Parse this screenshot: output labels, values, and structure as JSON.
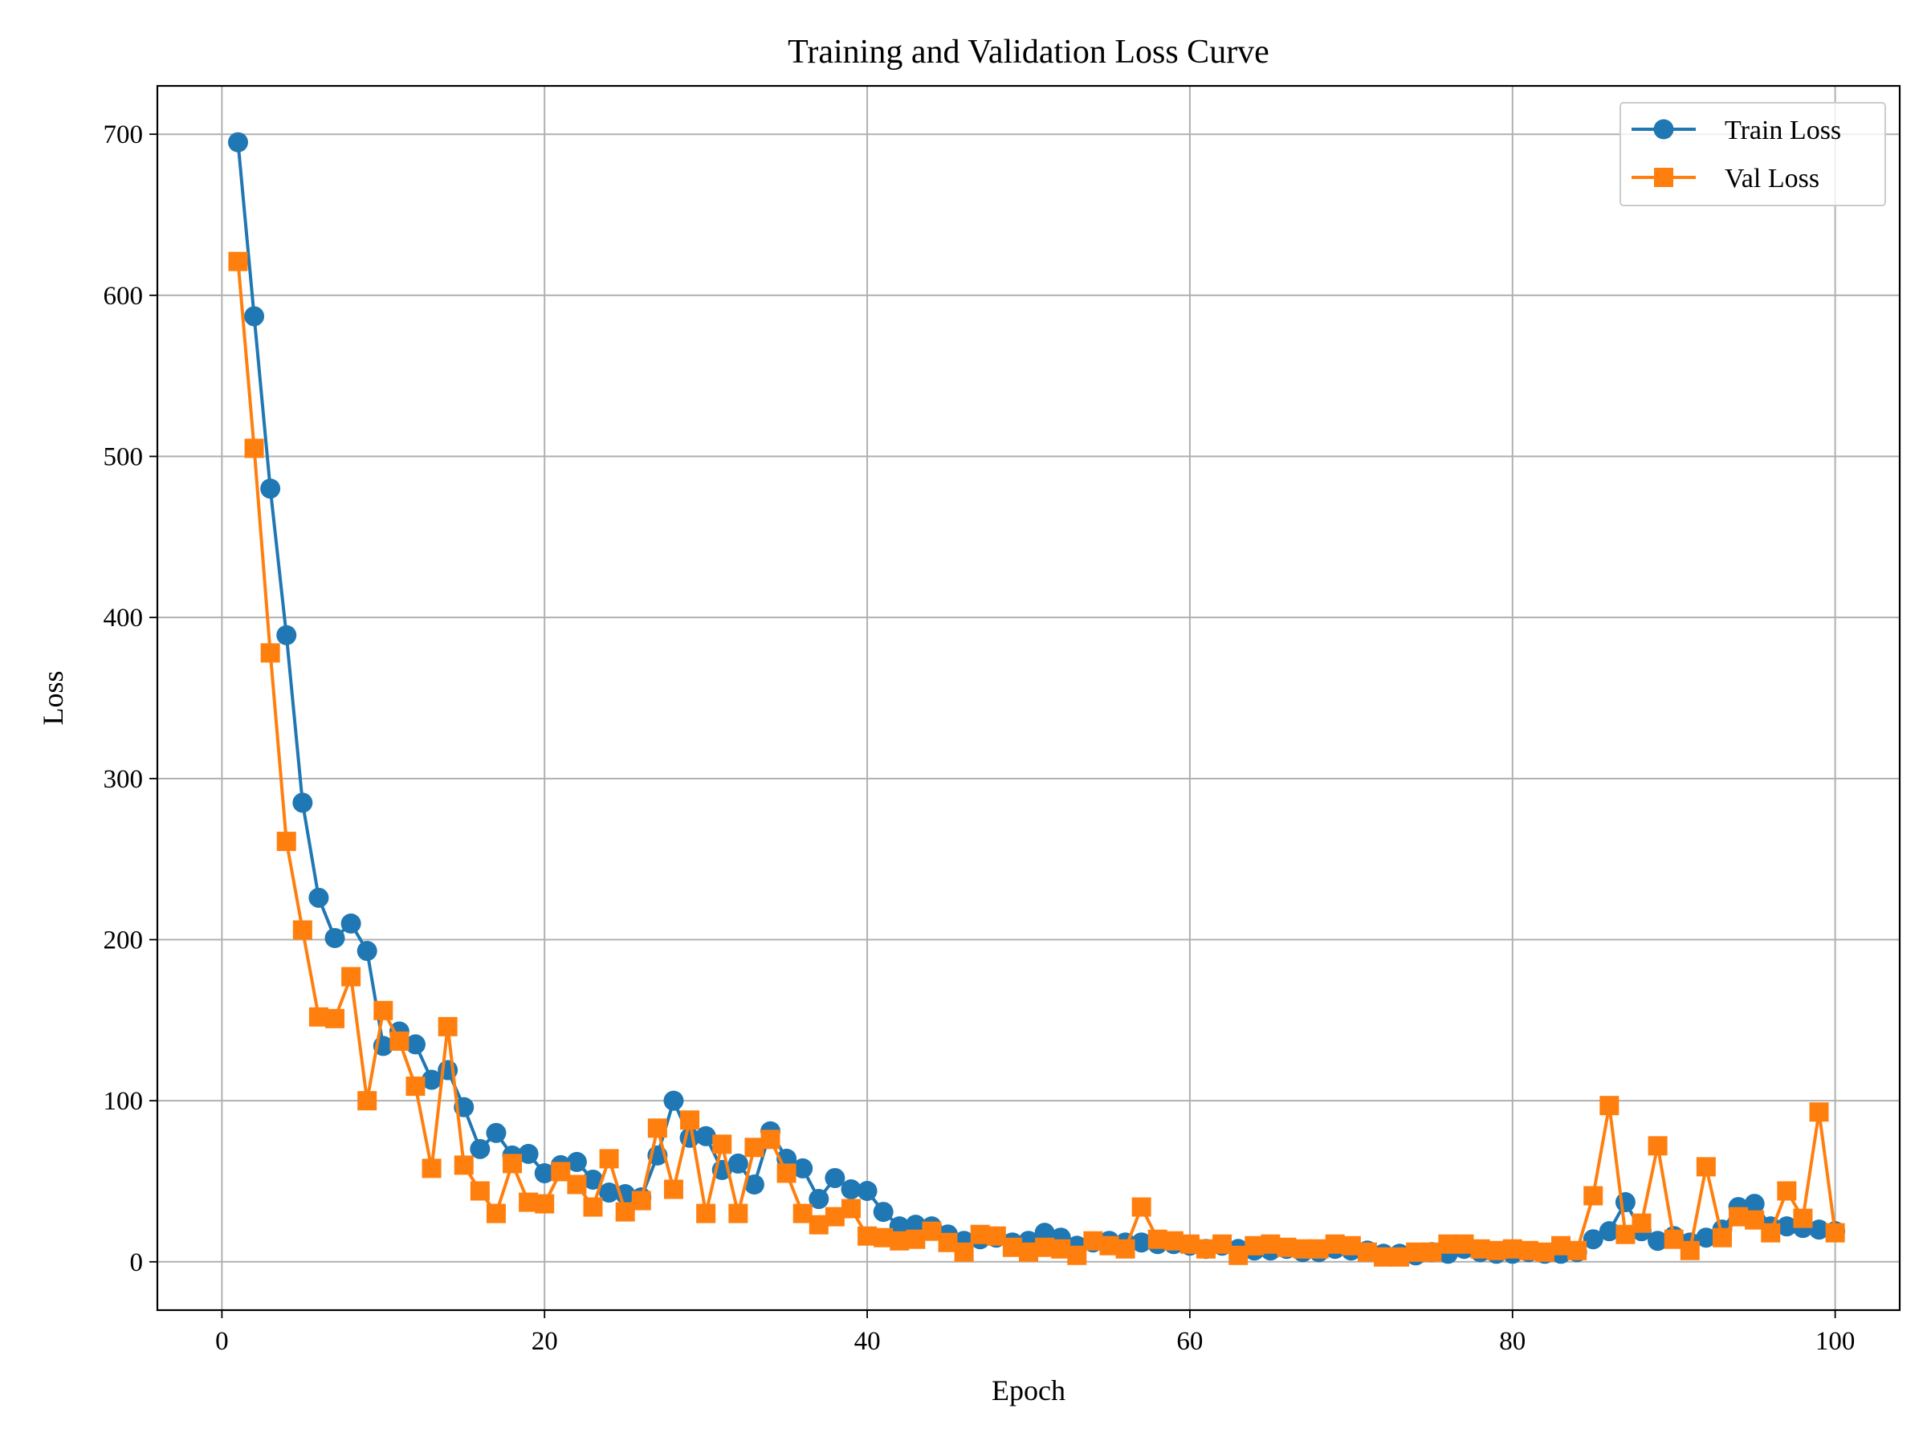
{
  "chart_data": {
    "type": "line",
    "title": "Training and Validation Loss Curve",
    "xlabel": "Epoch",
    "ylabel": "Loss",
    "xlim": [
      -4,
      104
    ],
    "ylim": [
      -30,
      730
    ],
    "xticks": [
      0,
      20,
      40,
      60,
      80,
      100
    ],
    "yticks": [
      0,
      100,
      200,
      300,
      400,
      500,
      600,
      700
    ],
    "grid": true,
    "legend_position": "top-right",
    "x": [
      1,
      2,
      3,
      4,
      5,
      6,
      7,
      8,
      9,
      10,
      11,
      12,
      13,
      14,
      15,
      16,
      17,
      18,
      19,
      20,
      21,
      22,
      23,
      24,
      25,
      26,
      27,
      28,
      29,
      30,
      31,
      32,
      33,
      34,
      35,
      36,
      37,
      38,
      39,
      40,
      41,
      42,
      43,
      44,
      45,
      46,
      47,
      48,
      49,
      50,
      51,
      52,
      53,
      54,
      55,
      56,
      57,
      58,
      59,
      60,
      61,
      62,
      63,
      64,
      65,
      66,
      67,
      68,
      69,
      70,
      71,
      72,
      73,
      74,
      75,
      76,
      77,
      78,
      79,
      80,
      81,
      82,
      83,
      84,
      85,
      86,
      87,
      88,
      89,
      90,
      91,
      92,
      93,
      94,
      95,
      96,
      97,
      98,
      99,
      100
    ],
    "series": [
      {
        "name": "Train Loss",
        "color": "#1f77b4",
        "marker": "circle",
        "values": [
          695,
          587,
          480,
          389,
          285,
          226,
          201,
          210,
          193,
          134,
          143,
          135,
          113,
          119,
          96,
          70,
          80,
          66,
          67,
          55,
          60,
          62,
          51,
          43,
          42,
          40,
          66,
          100,
          77,
          78,
          57,
          61,
          48,
          81,
          64,
          58,
          39,
          52,
          45,
          44,
          31,
          22,
          23,
          22,
          17,
          13,
          14,
          15,
          12,
          13,
          18,
          15,
          10,
          12,
          13,
          12,
          12,
          11,
          11,
          10,
          8,
          10,
          8,
          7,
          7,
          8,
          6,
          6,
          8,
          7,
          7,
          5,
          5,
          4,
          6,
          5,
          8,
          6,
          5,
          5,
          6,
          5,
          5,
          6,
          14,
          19,
          37,
          19,
          13,
          16,
          12,
          15,
          20,
          34,
          36,
          22,
          22,
          21,
          20,
          19
        ]
      },
      {
        "name": "Val Loss",
        "color": "#ff7f0e",
        "marker": "square",
        "values": [
          621,
          505,
          378,
          261,
          206,
          152,
          151,
          177,
          100,
          156,
          137,
          109,
          58,
          146,
          60,
          44,
          30,
          61,
          37,
          36,
          56,
          48,
          34,
          64,
          31,
          38,
          83,
          45,
          88,
          30,
          73,
          30,
          71,
          76,
          55,
          30,
          23,
          28,
          33,
          16,
          15,
          13,
          14,
          19,
          12,
          6,
          17,
          16,
          9,
          6,
          9,
          8,
          4,
          13,
          10,
          8,
          34,
          14,
          13,
          11,
          8,
          11,
          4,
          10,
          11,
          9,
          8,
          8,
          11,
          10,
          6,
          3,
          3,
          6,
          6,
          11,
          11,
          8,
          7,
          8,
          7,
          6,
          10,
          7,
          41,
          97,
          17,
          24,
          72,
          14,
          7,
          59,
          15,
          28,
          26,
          18,
          44,
          27,
          93,
          18
        ]
      }
    ]
  }
}
